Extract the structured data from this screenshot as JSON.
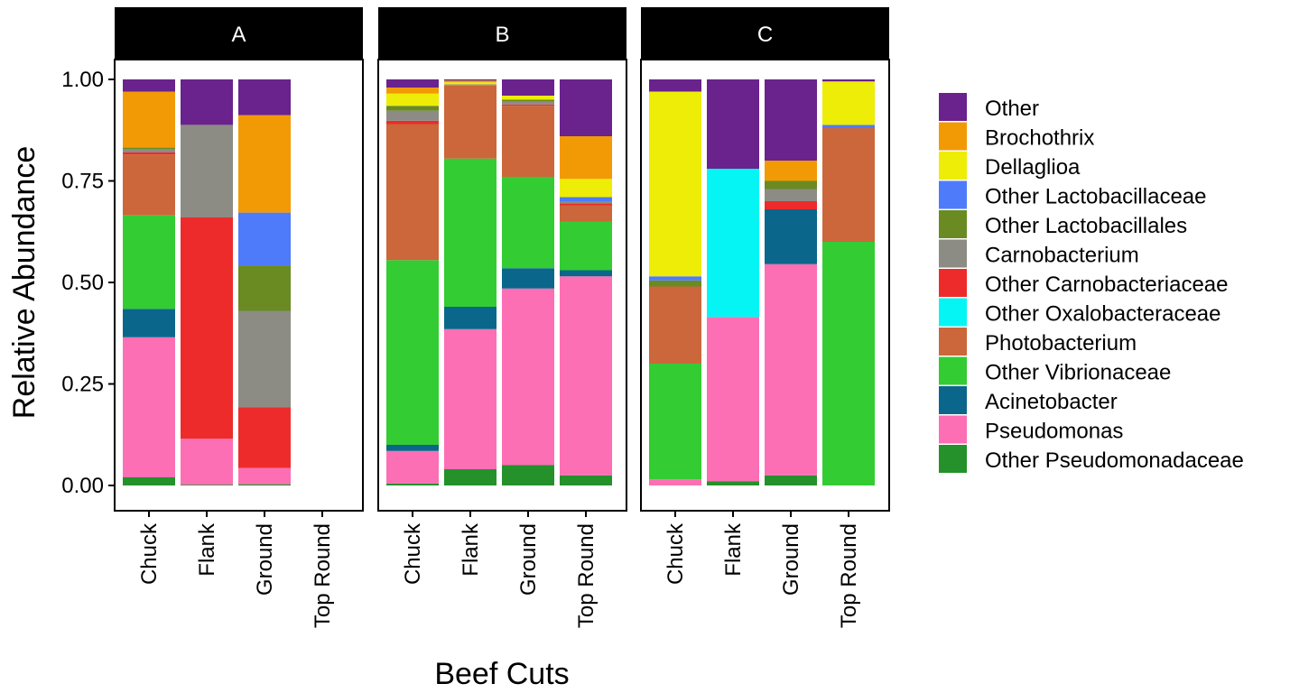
{
  "chart_data": {
    "type": "bar",
    "stacked": true,
    "xlabel": "Beef Cuts",
    "ylabel": "Relative Abundance",
    "ylim": [
      0,
      1
    ],
    "y_ticks": [
      "0.00",
      "0.25",
      "0.50",
      "0.75",
      "1.00"
    ],
    "categories": [
      "Chuck",
      "Flank",
      "Ground",
      "Top Round"
    ],
    "legend_position": "right",
    "taxa": [
      {
        "name": "Other",
        "color": "#6A228C"
      },
      {
        "name": "Brochothrix",
        "color": "#F29A05"
      },
      {
        "name": "Dellaglioa",
        "color": "#EDED07"
      },
      {
        "name": "Other Lactobacillaceae",
        "color": "#4D7BFA"
      },
      {
        "name": "Other Lactobacillales",
        "color": "#6A8A22"
      },
      {
        "name": "Carnobacterium",
        "color": "#8C8C84"
      },
      {
        "name": "Other Carnobacteriaceae",
        "color": "#ED2B2B"
      },
      {
        "name": "Other Oxalobacteraceae",
        "color": "#05F5F5"
      },
      {
        "name": "Photobacterium",
        "color": "#CB673A"
      },
      {
        "name": "Other Vibrionaceae",
        "color": "#33CC33"
      },
      {
        "name": "Acinetobacter",
        "color": "#0B668C"
      },
      {
        "name": "Pseudomonas",
        "color": "#FC6FB4"
      },
      {
        "name": "Other Pseudomonadaceae",
        "color": "#24912A"
      }
    ],
    "panels": [
      {
        "label": "A",
        "bars": [
          {
            "category": "Chuck",
            "segments": [
              {
                "taxon": "Other Pseudomonadaceae",
                "value": 0.02
              },
              {
                "taxon": "Pseudomonas",
                "value": 0.345
              },
              {
                "taxon": "Acinetobacter",
                "value": 0.07
              },
              {
                "taxon": "Other Vibrionaceae",
                "value": 0.23
              },
              {
                "taxon": "Photobacterium",
                "value": 0.15
              },
              {
                "taxon": "Other Carnobacteriaceae",
                "value": 0.005
              },
              {
                "taxon": "Carnobacterium",
                "value": 0.008
              },
              {
                "taxon": "Other Lactobacillales",
                "value": 0.004
              },
              {
                "taxon": "Brochothrix",
                "value": 0.138
              },
              {
                "taxon": "Other",
                "value": 0.03
              }
            ]
          },
          {
            "category": "Flank",
            "segments": [
              {
                "taxon": "Other Pseudomonadaceae",
                "value": 0.002
              },
              {
                "taxon": "Pseudomonas",
                "value": 0.113
              },
              {
                "taxon": "Other Carnobacteriaceae",
                "value": 0.545
              },
              {
                "taxon": "Carnobacterium",
                "value": 0.228
              },
              {
                "taxon": "Other",
                "value": 0.112
              }
            ]
          },
          {
            "category": "Ground",
            "segments": [
              {
                "taxon": "Other Pseudomonadaceae",
                "value": 0.003
              },
              {
                "taxon": "Pseudomonas",
                "value": 0.04
              },
              {
                "taxon": "Other Carnobacteriaceae",
                "value": 0.15
              },
              {
                "taxon": "Carnobacterium",
                "value": 0.237
              },
              {
                "taxon": "Other Lactobacillales",
                "value": 0.112
              },
              {
                "taxon": "Other Lactobacillaceae",
                "value": 0.13
              },
              {
                "taxon": "Brochothrix",
                "value": 0.24
              },
              {
                "taxon": "Other",
                "value": 0.088
              }
            ]
          },
          {
            "category": "Top Round",
            "segments": []
          }
        ]
      },
      {
        "label": "B",
        "bars": [
          {
            "category": "Chuck",
            "segments": [
              {
                "taxon": "Other Pseudomonadaceae",
                "value": 0.005
              },
              {
                "taxon": "Pseudomonas",
                "value": 0.08
              },
              {
                "taxon": "Acinetobacter",
                "value": 0.015
              },
              {
                "taxon": "Other Vibrionaceae",
                "value": 0.455
              },
              {
                "taxon": "Photobacterium",
                "value": 0.335
              },
              {
                "taxon": "Other Carnobacteriaceae",
                "value": 0.008
              },
              {
                "taxon": "Carnobacterium",
                "value": 0.025
              },
              {
                "taxon": "Other Lactobacillales",
                "value": 0.012
              },
              {
                "taxon": "Dellaglioa",
                "value": 0.03
              },
              {
                "taxon": "Brochothrix",
                "value": 0.015
              },
              {
                "taxon": "Other",
                "value": 0.02
              }
            ]
          },
          {
            "category": "Flank",
            "segments": [
              {
                "taxon": "Other Pseudomonadaceae",
                "value": 0.04
              },
              {
                "taxon": "Pseudomonas",
                "value": 0.345
              },
              {
                "taxon": "Acinetobacter",
                "value": 0.055
              },
              {
                "taxon": "Other Vibrionaceae",
                "value": 0.365
              },
              {
                "taxon": "Photobacterium",
                "value": 0.18
              },
              {
                "taxon": "Carnobacterium",
                "value": 0.003
              },
              {
                "taxon": "Dellaglioa",
                "value": 0.005
              },
              {
                "taxon": "Brochothrix",
                "value": 0.004
              },
              {
                "taxon": "Other",
                "value": 0.003
              }
            ]
          },
          {
            "category": "Ground",
            "segments": [
              {
                "taxon": "Other Pseudomonadaceae",
                "value": 0.05
              },
              {
                "taxon": "Pseudomonas",
                "value": 0.435
              },
              {
                "taxon": "Acinetobacter",
                "value": 0.05
              },
              {
                "taxon": "Other Vibrionaceae",
                "value": 0.225
              },
              {
                "taxon": "Photobacterium",
                "value": 0.175
              },
              {
                "taxon": "Other Carnobacteriaceae",
                "value": 0.003
              },
              {
                "taxon": "Carnobacterium",
                "value": 0.007
              },
              {
                "taxon": "Other Lactobacillales",
                "value": 0.005
              },
              {
                "taxon": "Dellaglioa",
                "value": 0.01
              },
              {
                "taxon": "Other",
                "value": 0.04
              }
            ]
          },
          {
            "category": "Top Round",
            "segments": [
              {
                "taxon": "Other Pseudomonadaceae",
                "value": 0.025
              },
              {
                "taxon": "Pseudomonas",
                "value": 0.49
              },
              {
                "taxon": "Acinetobacter",
                "value": 0.015
              },
              {
                "taxon": "Other Vibrionaceae",
                "value": 0.12
              },
              {
                "taxon": "Photobacterium",
                "value": 0.04
              },
              {
                "taxon": "Other Carnobacteriaceae",
                "value": 0.005
              },
              {
                "taxon": "Carnobacterium",
                "value": 0.005
              },
              {
                "taxon": "Other Lactobacillaceae",
                "value": 0.01
              },
              {
                "taxon": "Dellaglioa",
                "value": 0.045
              },
              {
                "taxon": "Brochothrix",
                "value": 0.105
              },
              {
                "taxon": "Other",
                "value": 0.14
              }
            ]
          }
        ]
      },
      {
        "label": "C",
        "bars": [
          {
            "category": "Chuck",
            "segments": [
              {
                "taxon": "Pseudomonas",
                "value": 0.015
              },
              {
                "taxon": "Other Vibrionaceae",
                "value": 0.285
              },
              {
                "taxon": "Photobacterium",
                "value": 0.19
              },
              {
                "taxon": "Other Lactobacillales",
                "value": 0.015
              },
              {
                "taxon": "Other Lactobacillaceae",
                "value": 0.01
              },
              {
                "taxon": "Dellaglioa",
                "value": 0.455
              },
              {
                "taxon": "Other",
                "value": 0.03
              }
            ]
          },
          {
            "category": "Flank",
            "segments": [
              {
                "taxon": "Other Pseudomonadaceae",
                "value": 0.01
              },
              {
                "taxon": "Pseudomonas",
                "value": 0.405
              },
              {
                "taxon": "Other Oxalobacteraceae",
                "value": 0.365
              },
              {
                "taxon": "Other",
                "value": 0.22
              }
            ]
          },
          {
            "category": "Ground",
            "segments": [
              {
                "taxon": "Other Pseudomonadaceae",
                "value": 0.025
              },
              {
                "taxon": "Pseudomonas",
                "value": 0.52
              },
              {
                "taxon": "Acinetobacter",
                "value": 0.135
              },
              {
                "taxon": "Other Carnobacteriaceae",
                "value": 0.02
              },
              {
                "taxon": "Carnobacterium",
                "value": 0.03
              },
              {
                "taxon": "Other Lactobacillales",
                "value": 0.02
              },
              {
                "taxon": "Brochothrix",
                "value": 0.05
              },
              {
                "taxon": "Other",
                "value": 0.2
              }
            ]
          },
          {
            "category": "Top Round",
            "segments": [
              {
                "taxon": "Other Vibrionaceae",
                "value": 0.6
              },
              {
                "taxon": "Photobacterium",
                "value": 0.28
              },
              {
                "taxon": "Other Lactobacillaceae",
                "value": 0.008
              },
              {
                "taxon": "Dellaglioa",
                "value": 0.107
              },
              {
                "taxon": "Other",
                "value": 0.005
              }
            ]
          }
        ]
      }
    ]
  }
}
